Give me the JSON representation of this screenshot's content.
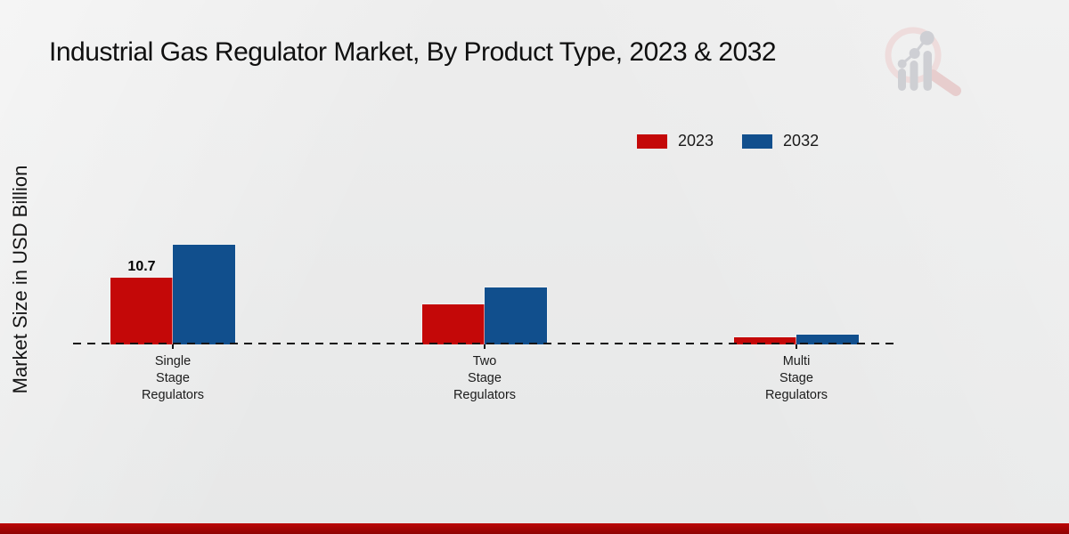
{
  "title": "Industrial Gas Regulator Market, By Product Type, 2023 & 2032",
  "ylabel": "Market Size in USD Billion",
  "legend": [
    {
      "label": "2023",
      "color": "#c40808"
    },
    {
      "label": "2032",
      "color": "#114f8d"
    }
  ],
  "chart_data": {
    "type": "bar",
    "categories": [
      "Single Stage Regulators",
      "Two Stage Regulators",
      "Multi Stage Regulators"
    ],
    "series": [
      {
        "name": "2023",
        "color": "#c40808",
        "values": [
          10.7,
          6.4,
          1.1
        ]
      },
      {
        "name": "2032",
        "color": "#114f8d",
        "values": [
          16.0,
          9.2,
          1.6
        ]
      }
    ],
    "data_labels": [
      {
        "series": "2023",
        "category": "Single Stage Regulators",
        "text": "10.7"
      }
    ],
    "ylim": [
      0,
      17
    ],
    "xlabel": "",
    "ylabel": "Market Size in USD Billion",
    "grid": false,
    "baseline_style": "dashed",
    "legend_position": "top-right"
  },
  "branding": {
    "logo_icon": "magnifier-bar-chart-logo"
  },
  "colors": {
    "background": "#eaeaea",
    "footer_band_top": "#bb0606",
    "footer_band_bottom": "#8e0404",
    "baseline": "#141414",
    "logo_pink": "#eedada",
    "logo_gray": "#cbccd1"
  }
}
